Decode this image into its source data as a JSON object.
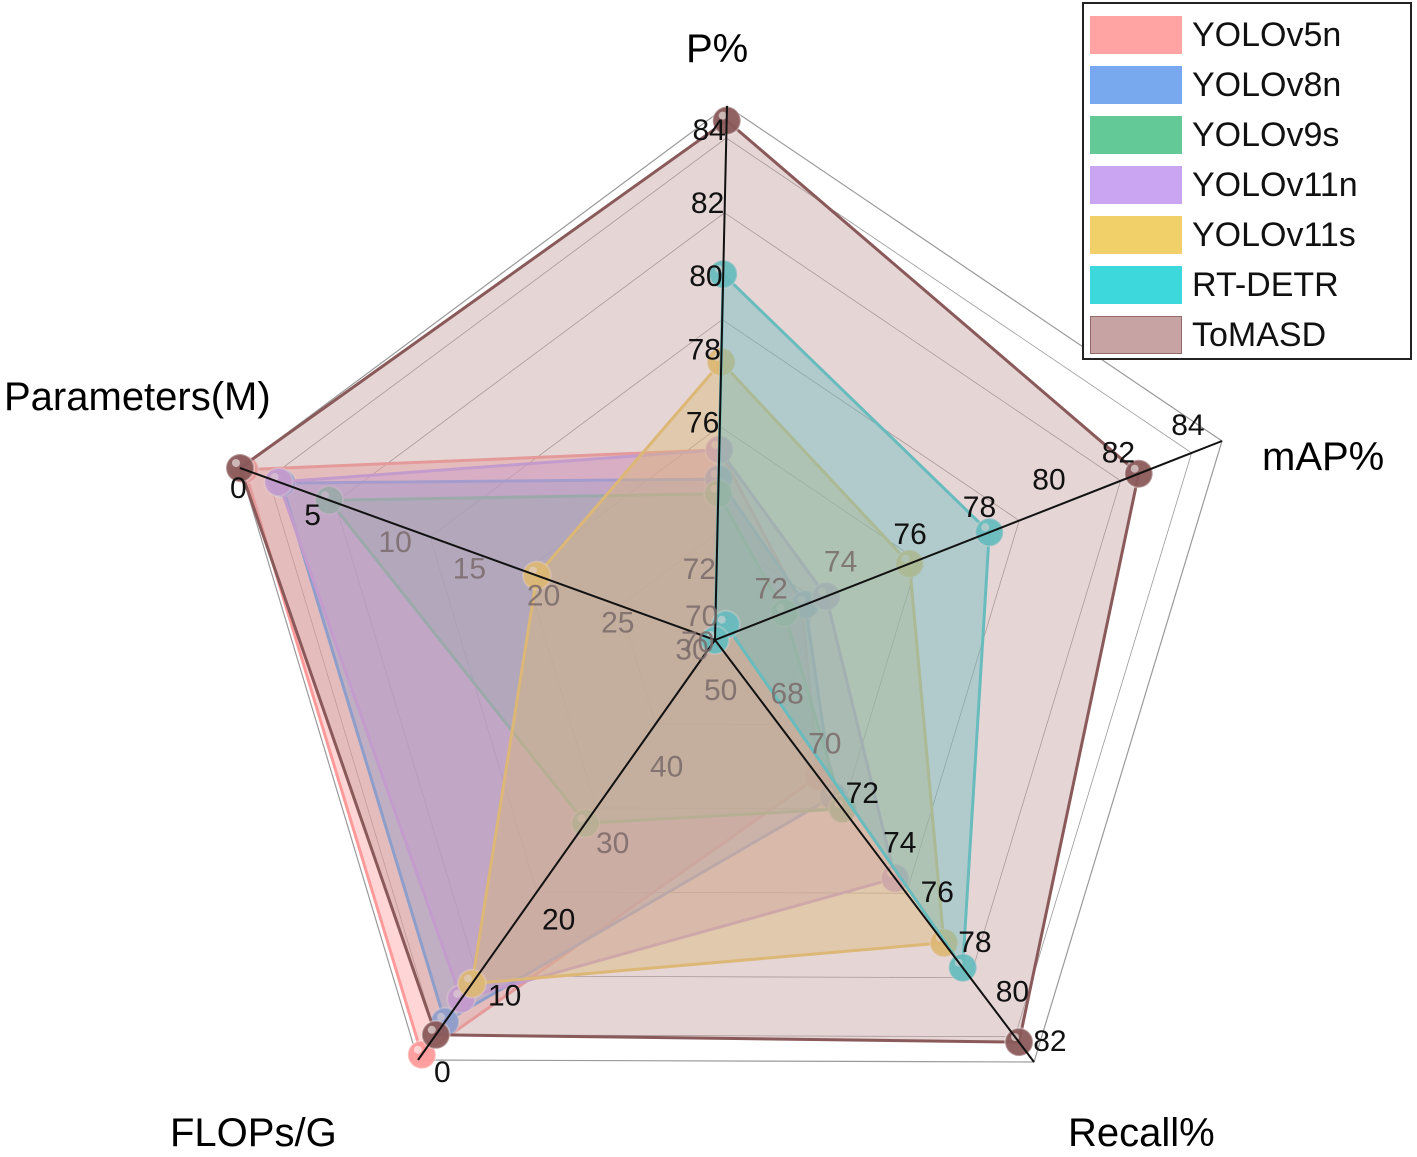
{
  "chart_data": {
    "type": "radar",
    "axes": [
      {
        "name": "P%",
        "ticks": [
          "76",
          "78",
          "80",
          "82",
          "84"
        ],
        "faded_ticks": [
          "72",
          "70"
        ]
      },
      {
        "name": "mAP%",
        "ticks": [
          "76",
          "78",
          "80",
          "82",
          "84"
        ],
        "faded_ticks": [
          "74",
          "72",
          "70"
        ]
      },
      {
        "name": "Recall%",
        "ticks": [
          "72",
          "74",
          "76",
          "78",
          "80",
          "82"
        ],
        "faded_ticks": [
          "68",
          "70"
        ]
      },
      {
        "name": "FLOPs/G",
        "ticks": [
          "0",
          "10",
          "20"
        ],
        "faded_ticks": [
          "30",
          "40",
          "50"
        ]
      },
      {
        "name": "Parameters(M)",
        "ticks": [
          "0",
          "5"
        ],
        "faded_ticks": [
          "10",
          "15",
          "20",
          "25",
          "30"
        ]
      }
    ],
    "series": [
      {
        "name": "YOLOv5n",
        "color": "#ff9a9a",
        "values": [
          75.2,
          72.5,
          71.5,
          0.7,
          0.3
        ]
      },
      {
        "name": "YOLOv8n",
        "color": "#6aa0ee",
        "values": [
          74.4,
          72.6,
          72.3,
          5.0,
          2.8
        ]
      },
      {
        "name": "YOLOv9s",
        "color": "#52c48c",
        "values": [
          74.0,
          72.0,
          72.8,
          31.0,
          6.0
        ]
      },
      {
        "name": "YOLOv11n",
        "color": "#c59cf0",
        "values": [
          75.2,
          73.2,
          75.6,
          8.0,
          2.6
        ]
      },
      {
        "name": "YOLOv11s",
        "color": "#f0cc5a",
        "values": [
          77.6,
          75.6,
          78.2,
          10.0,
          20.0
        ]
      },
      {
        "name": "RT-DETR",
        "color": "#28d4d8",
        "values": [
          80.0,
          77.9,
          79.2,
          57.0,
          32.0
        ]
      },
      {
        "name": "ToMASD",
        "color": "#c19a9a",
        "edge": "#8a5a5a",
        "values": [
          84.2,
          82.2,
          82.2,
          3.3,
          0.0
        ]
      }
    ]
  }
}
